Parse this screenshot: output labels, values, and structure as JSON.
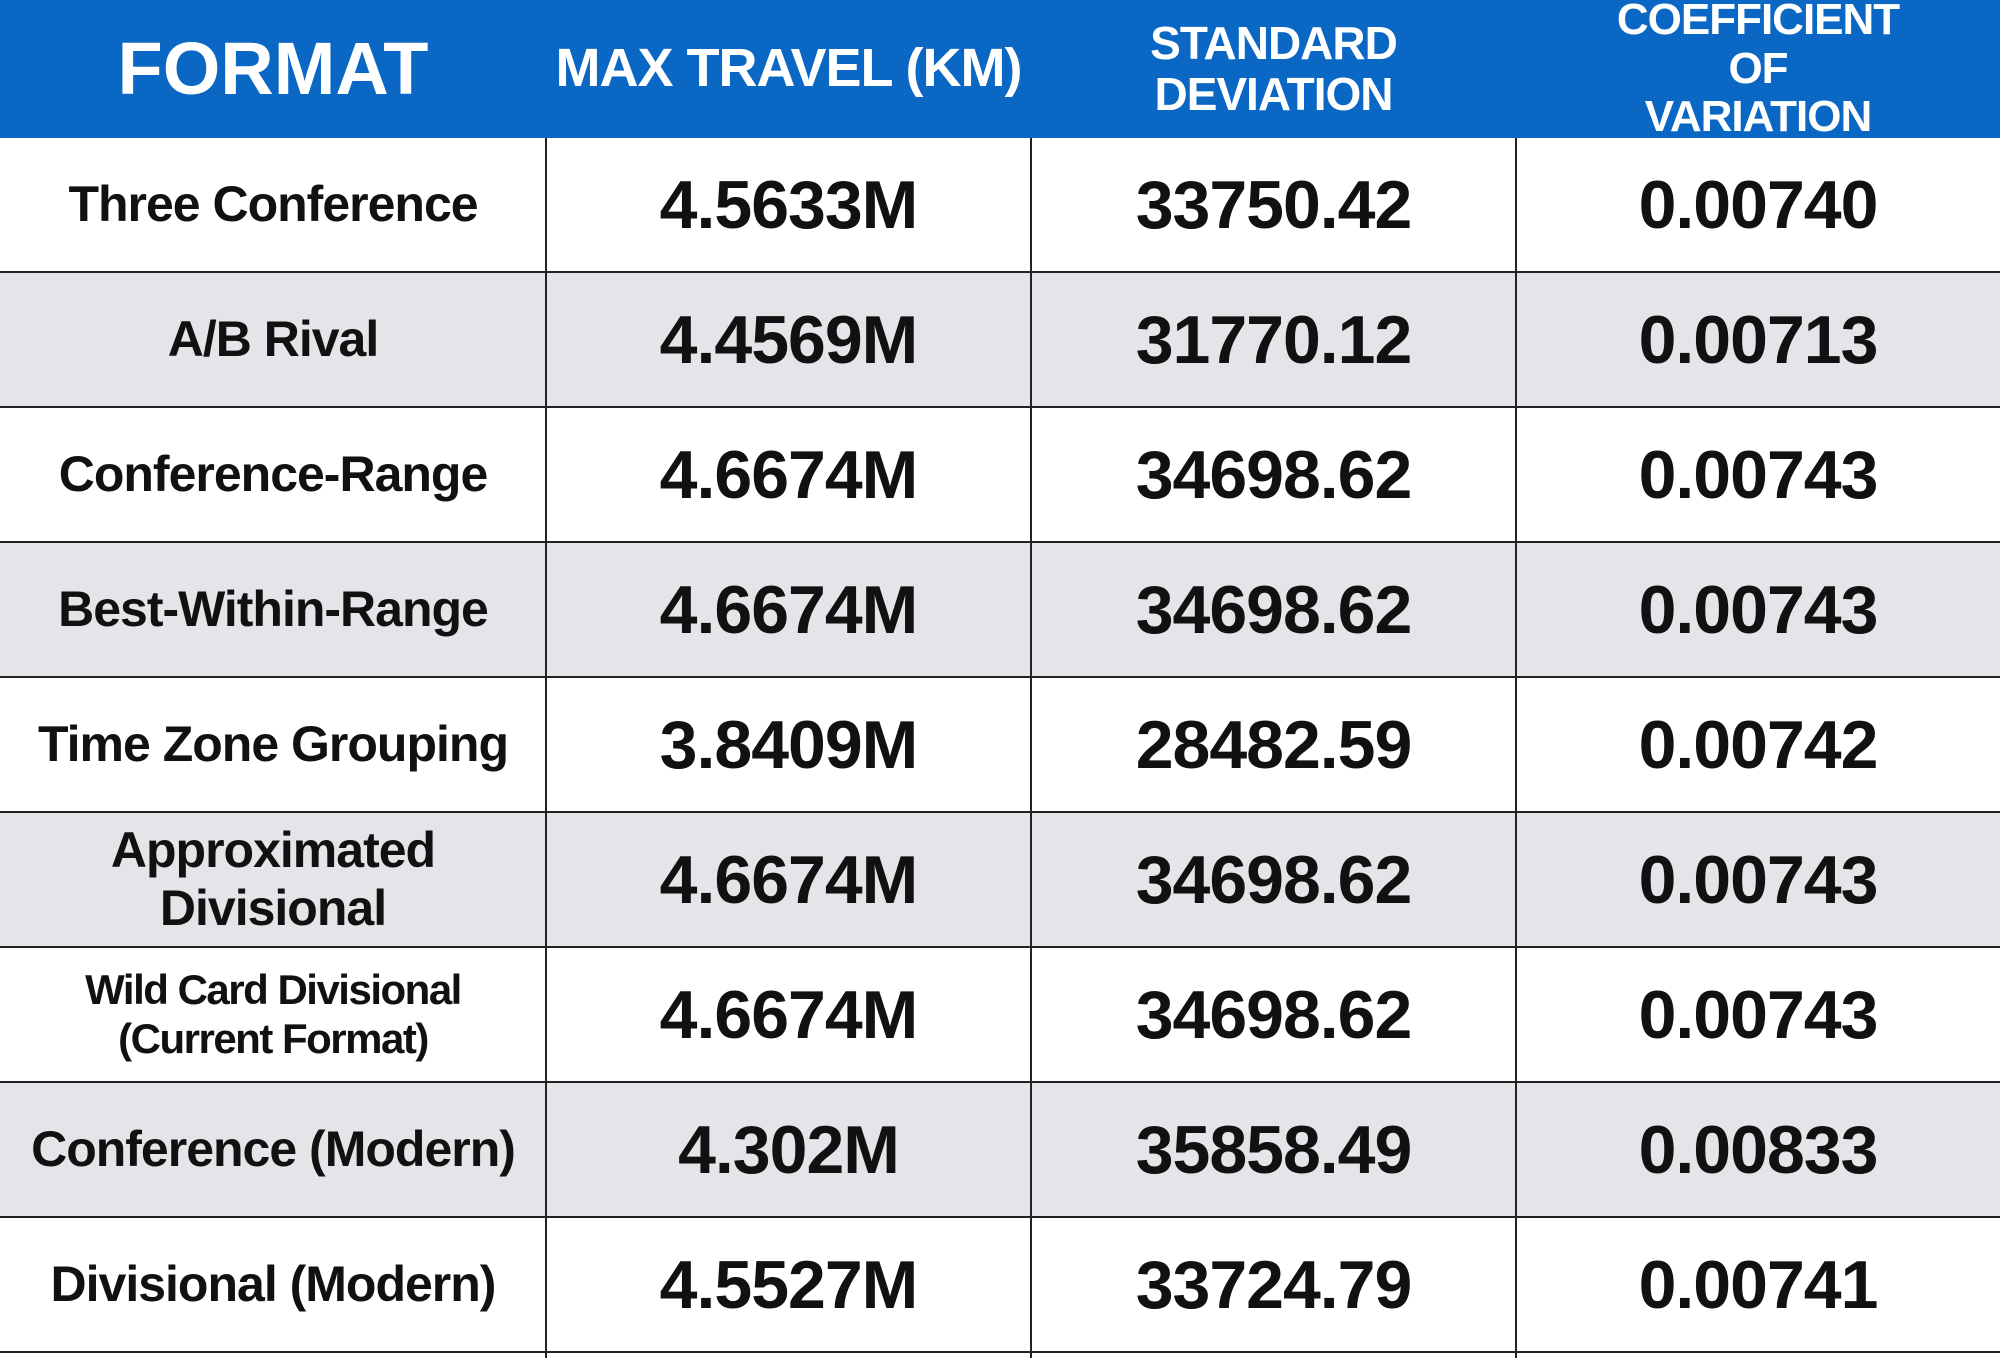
{
  "chart_data": {
    "type": "table",
    "columns": [
      "FORMAT",
      "MAX TRAVEL (KM)",
      "STANDARD DEVIATION",
      "COEFFICIENT OF VARIATION"
    ],
    "rows": [
      [
        "Three Conference",
        "4.5633M",
        "33750.42",
        "0.00740"
      ],
      [
        "A/B Rival",
        "4.4569M",
        "31770.12",
        "0.00713"
      ],
      [
        "Conference-Range",
        "4.6674M",
        "34698.62",
        "0.00743"
      ],
      [
        "Best-Within-Range",
        "4.6674M",
        "34698.62",
        "0.00743"
      ],
      [
        "Time Zone Grouping",
        "3.8409M",
        "28482.59",
        "0.00742"
      ],
      [
        "Approximated Divisional",
        "4.6674M",
        "34698.62",
        "0.00743"
      ],
      [
        "Wild Card Divisional (Current Format)",
        "4.6674M",
        "34698.62",
        "0.00743"
      ],
      [
        "Conference (Modern)",
        "4.302M",
        "35858.49",
        "0.00833"
      ],
      [
        "Divisional (Modern)",
        "4.5527M",
        "33724.79",
        "0.00741"
      ]
    ]
  },
  "colors": {
    "header_background": "#0a67c4",
    "header_text": "#ffffff",
    "alt_row_background": "#e5e5e9",
    "row_background": "#ffffff",
    "grid_lines": "#222222"
  }
}
